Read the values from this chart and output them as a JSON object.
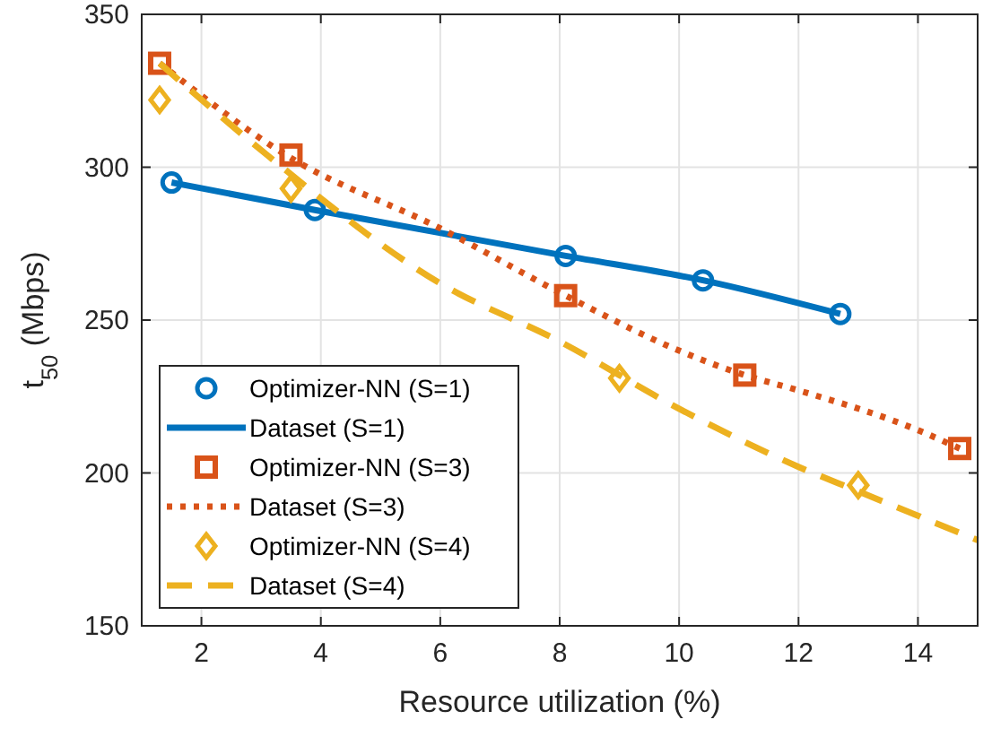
{
  "chart_data": {
    "type": "line",
    "xlabel": "Resource utilization (%)",
    "ylabel": "t$_{50}$ (Mbps)",
    "xlim": [
      1,
      15
    ],
    "xticks": [
      2,
      4,
      6,
      8,
      10,
      12,
      14
    ],
    "ylim": [
      150,
      350
    ],
    "yticks": [
      150,
      200,
      250,
      300,
      350
    ],
    "grid": true,
    "legend": "bottom left",
    "series": [
      {
        "name": "Optimizer-NN (S=1)",
        "type": "scatter",
        "marker": "circle",
        "color": "#0072bd",
        "x": [
          1.5,
          3.9,
          8.1,
          10.4,
          12.7
        ],
        "values": [
          295,
          286,
          271,
          263,
          252
        ]
      },
      {
        "name": "Dataset (S=1)",
        "line_style": "solid",
        "color": "#0072bd",
        "x": [
          1.5,
          3.9,
          8.1,
          10.4,
          12.7
        ],
        "values": [
          295,
          286,
          271,
          263,
          252
        ]
      },
      {
        "name": "Optimizer-NN (S=3)",
        "type": "scatter",
        "marker": "square",
        "color": "#d95319",
        "x": [
          1.3,
          3.5,
          8.1,
          11.1,
          14.7
        ],
        "values": [
          334,
          304,
          258,
          232,
          208
        ]
      },
      {
        "name": "Dataset (S=3)",
        "line_style": "dotted",
        "color": "#d95319",
        "x": [
          1.3,
          3.5,
          6,
          8.1,
          10,
          11.1,
          12,
          14,
          14.7
        ],
        "values": [
          334,
          303,
          280,
          258,
          240,
          232,
          227,
          214,
          208
        ]
      },
      {
        "name": "Optimizer-NN (S=4)",
        "type": "scatter",
        "marker": "diamond",
        "color": "#edb120",
        "x": [
          1.3,
          3.5,
          9,
          13
        ],
        "values": [
          322,
          293,
          231,
          196
        ]
      },
      {
        "name": "Dataset (S=4)",
        "line_style": "dashed",
        "color": "#edb120",
        "x": [
          1.3,
          3.1,
          6,
          8,
          10,
          12,
          13,
          15
        ],
        "values": [
          334,
          304,
          262,
          243,
          221,
          202,
          194,
          178
        ]
      }
    ]
  }
}
